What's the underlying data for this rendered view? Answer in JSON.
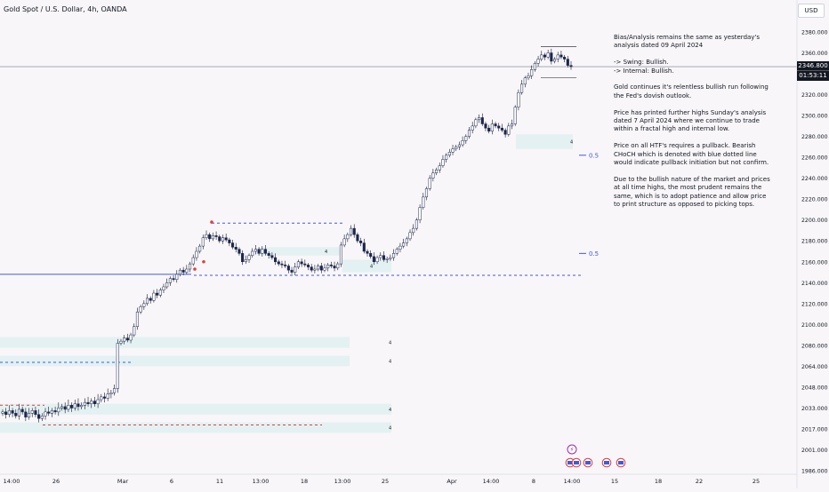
{
  "header": {
    "symbol_title": "Gold Spot / U.S. Dollar, 4h, OANDA",
    "currency_button": "USD"
  },
  "price_label": {
    "price": "2346.800",
    "countdown": "01:53:11"
  },
  "analysis_notes": [
    "Bias/Analysis remains the same as yesterday's\nanalysis dated 09 April 2024",
    "-> Swing:  Bullish.\n-> Internal:  Bullish.",
    "Gold continues it's relentless bullish run following\nthe Fed's dovish outlook.",
    "Price has printed further highs Sunday's analysis\ndated 7 April 2024 where we continue to trade\nwithin a fractal high and internal low.",
    "Price on all HTF's requires a pullback.  Bearish\nCHoCH which is denoted with blue dotted line\nwould indicate pullback initiation but not confirm.",
    "Due to the bullish nature of the market and prices\nat all time highs, the most prudent remains the\nsame, which is to adopt patience and allow price\nto print structure as opposed to picking tops."
  ],
  "chart_data": {
    "type": "candlestick",
    "symbol": "Gold Spot / U.S. Dollar",
    "timeframe": "4h",
    "source": "OANDA",
    "y_axis": {
      "ylim": [
        1981,
        2388
      ],
      "tick_values": [
        1986,
        2001,
        2017,
        2033,
        2048,
        2064,
        2080,
        2100,
        2120,
        2140,
        2160,
        2180,
        2200,
        2220,
        2240,
        2260,
        2280,
        2300,
        2320,
        2340,
        2360,
        2380
      ],
      "tick_labels": [
        "1986.000",
        "2001.000",
        "2017.000",
        "2033.000",
        "2048.000",
        "2064.000",
        "2080.000",
        "2100.000",
        "2120.000",
        "2140.000",
        "2160.000",
        "2180.000",
        "2200.000",
        "2220.000",
        "2240.000",
        "2260.000",
        "2280.000",
        "2300.000",
        "2320.000",
        "2340.000",
        "2360.000",
        "2380.000"
      ]
    },
    "x_axis": {
      "tick_labels": [
        "14:00",
        "26",
        "Mar",
        "6",
        "11",
        "13:00",
        "18",
        "13:00",
        "25",
        "Apr",
        "14:00",
        "8",
        "14:00",
        "15",
        "18",
        "22",
        "25"
      ]
    },
    "candle_closes": [
      2030,
      2028,
      2031,
      2029,
      2027,
      2032,
      2030,
      2026,
      2029,
      2031,
      2028,
      2025,
      2027,
      2030,
      2029,
      2031,
      2030,
      2033,
      2034,
      2032,
      2035,
      2033,
      2036,
      2034,
      2035,
      2037,
      2036,
      2038,
      2036,
      2039,
      2041,
      2040,
      2043,
      2044,
      2047,
      2082,
      2084,
      2087,
      2085,
      2090,
      2098,
      2112,
      2117,
      2120,
      2125,
      2123,
      2130,
      2128,
      2133,
      2136,
      2140,
      2144,
      2143,
      2148,
      2152,
      2150,
      2153,
      2158,
      2164,
      2170,
      2175,
      2183,
      2186,
      2182,
      2185,
      2184,
      2180,
      2183,
      2181,
      2178,
      2174,
      2172,
      2168,
      2160,
      2162,
      2166,
      2170,
      2172,
      2168,
      2172,
      2168,
      2166,
      2164,
      2160,
      2158,
      2157,
      2156,
      2152,
      2150,
      2155,
      2160,
      2158,
      2157,
      2155,
      2152,
      2153,
      2156,
      2152,
      2154,
      2157,
      2156,
      2154,
      2158,
      2176,
      2182,
      2186,
      2192,
      2186,
      2180,
      2178,
      2170,
      2168,
      2165,
      2160,
      2164,
      2166,
      2162,
      2163,
      2164,
      2168,
      2172,
      2175,
      2178,
      2182,
      2188,
      2192,
      2200,
      2212,
      2222,
      2230,
      2240,
      2245,
      2248,
      2252,
      2258,
      2262,
      2265,
      2268,
      2270,
      2272,
      2276,
      2280,
      2286,
      2290,
      2296,
      2298,
      2292,
      2288,
      2285,
      2292,
      2290,
      2288,
      2286,
      2282,
      2290,
      2292,
      2308,
      2322,
      2330,
      2336,
      2338,
      2344,
      2350,
      2354,
      2358,
      2356,
      2360,
      2352,
      2354,
      2358,
      2356,
      2354,
      2348,
      2346.8
    ],
    "last_price": 2346.8,
    "fib_labels": [
      "0.5",
      "0.5"
    ],
    "zone_labels": [
      "4",
      "4",
      "4",
      "4",
      "4",
      "4",
      "4"
    ]
  }
}
